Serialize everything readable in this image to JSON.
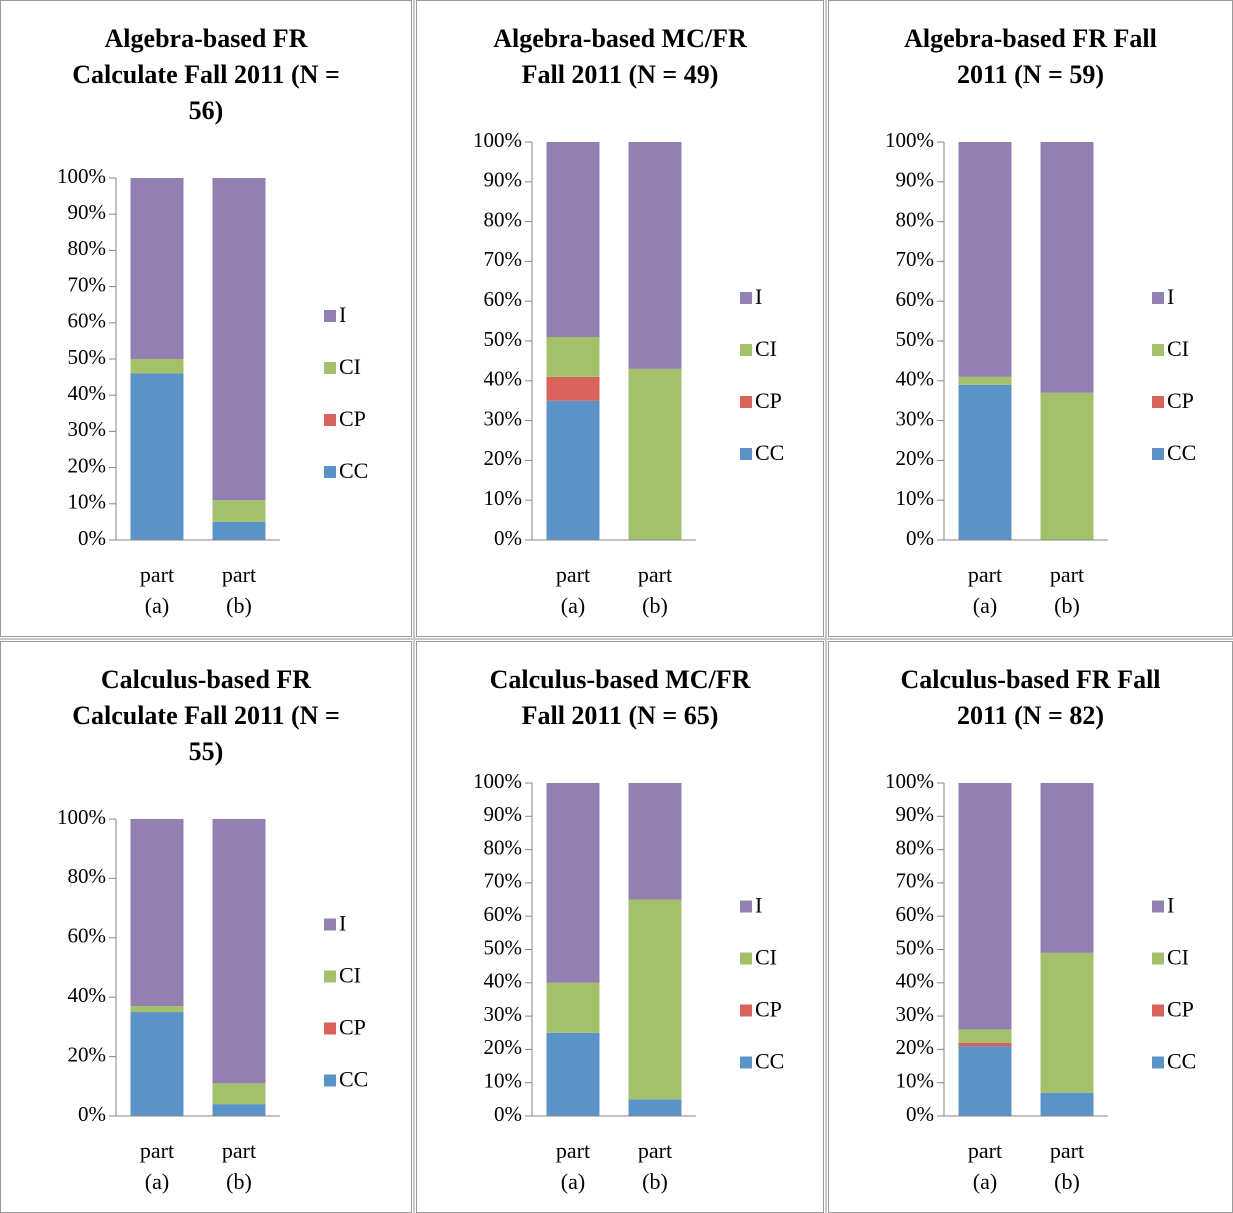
{
  "chart_data": [
    {
      "type": "bar",
      "stacked": true,
      "title": "Algebra-based FR Calculate Fall 2011 (N = 56)",
      "categories": [
        "part (a)",
        "part (b)"
      ],
      "series": [
        {
          "name": "CC",
          "color": "#5b93c9",
          "values": [
            46,
            5
          ]
        },
        {
          "name": "CP",
          "color": "#d9625a",
          "values": [
            0,
            0
          ]
        },
        {
          "name": "CI",
          "color": "#a3c16a",
          "values": [
            4,
            6
          ]
        },
        {
          "name": "I",
          "color": "#9380b3",
          "values": [
            50,
            89
          ]
        }
      ],
      "ylim": [
        0,
        100
      ],
      "yticks": [
        {
          "value": 0,
          "label": "0%"
        },
        {
          "value": 10,
          "label": "10%"
        },
        {
          "value": 20,
          "label": "20%"
        },
        {
          "value": 30,
          "label": "30%"
        },
        {
          "value": 40,
          "label": "40%"
        },
        {
          "value": 50,
          "label": "50%"
        },
        {
          "value": 60,
          "label": "60%"
        },
        {
          "value": 70,
          "label": "70%"
        },
        {
          "value": 80,
          "label": "80%"
        },
        {
          "value": 90,
          "label": "90%"
        },
        {
          "value": 100,
          "label": "100%"
        }
      ],
      "legend": "right"
    },
    {
      "type": "bar",
      "stacked": true,
      "title": "Algebra-based MC/FR Fall 2011 (N = 49)",
      "categories": [
        "part (a)",
        "part (b)"
      ],
      "series": [
        {
          "name": "CC",
          "color": "#5b93c9",
          "values": [
            35,
            0
          ]
        },
        {
          "name": "CP",
          "color": "#d9625a",
          "values": [
            6,
            0
          ]
        },
        {
          "name": "CI",
          "color": "#a3c16a",
          "values": [
            10,
            43
          ]
        },
        {
          "name": "I",
          "color": "#9380b3",
          "values": [
            49,
            57
          ]
        }
      ],
      "ylim": [
        0,
        100
      ],
      "yticks": [
        {
          "value": 0,
          "label": "0%"
        },
        {
          "value": 10,
          "label": "10%"
        },
        {
          "value": 20,
          "label": "20%"
        },
        {
          "value": 30,
          "label": "30%"
        },
        {
          "value": 40,
          "label": "40%"
        },
        {
          "value": 50,
          "label": "50%"
        },
        {
          "value": 60,
          "label": "60%"
        },
        {
          "value": 70,
          "label": "70%"
        },
        {
          "value": 80,
          "label": "80%"
        },
        {
          "value": 90,
          "label": "90%"
        },
        {
          "value": 100,
          "label": "100%"
        }
      ],
      "legend": "right"
    },
    {
      "type": "bar",
      "stacked": true,
      "title": "Algebra-based FR Fall 2011 (N = 59)",
      "categories": [
        "part (a)",
        "part (b)"
      ],
      "series": [
        {
          "name": "CC",
          "color": "#5b93c9",
          "values": [
            39,
            0
          ]
        },
        {
          "name": "CP",
          "color": "#d9625a",
          "values": [
            0,
            0
          ]
        },
        {
          "name": "CI",
          "color": "#a3c16a",
          "values": [
            2,
            37
          ]
        },
        {
          "name": "I",
          "color": "#9380b3",
          "values": [
            59,
            63
          ]
        }
      ],
      "ylim": [
        0,
        100
      ],
      "yticks": [
        {
          "value": 0,
          "label": "0%"
        },
        {
          "value": 10,
          "label": "10%"
        },
        {
          "value": 20,
          "label": "20%"
        },
        {
          "value": 30,
          "label": "30%"
        },
        {
          "value": 40,
          "label": "40%"
        },
        {
          "value": 50,
          "label": "50%"
        },
        {
          "value": 60,
          "label": "60%"
        },
        {
          "value": 70,
          "label": "70%"
        },
        {
          "value": 80,
          "label": "80%"
        },
        {
          "value": 90,
          "label": "90%"
        },
        {
          "value": 100,
          "label": "100%"
        }
      ],
      "legend": "right"
    },
    {
      "type": "bar",
      "stacked": true,
      "title": "Calculus-based FR Calculate Fall 2011 (N = 55)",
      "categories": [
        "part (a)",
        "part (b)"
      ],
      "series": [
        {
          "name": "CC",
          "color": "#5b93c9",
          "values": [
            35,
            4
          ]
        },
        {
          "name": "CP",
          "color": "#d9625a",
          "values": [
            0,
            0
          ]
        },
        {
          "name": "CI",
          "color": "#a3c16a",
          "values": [
            2,
            7
          ]
        },
        {
          "name": "I",
          "color": "#9380b3",
          "values": [
            63,
            89
          ]
        }
      ],
      "ylim": [
        0,
        100
      ],
      "yticks": [
        {
          "value": 0,
          "label": "0%"
        },
        {
          "value": 20,
          "label": "20%"
        },
        {
          "value": 40,
          "label": "40%"
        },
        {
          "value": 60,
          "label": "60%"
        },
        {
          "value": 80,
          "label": "80%"
        },
        {
          "value": 100,
          "label": "100%"
        }
      ],
      "legend": "right"
    },
    {
      "type": "bar",
      "stacked": true,
      "title": "Calculus-based MC/FR Fall 2011 (N = 65)",
      "categories": [
        "part (a)",
        "part (b)"
      ],
      "series": [
        {
          "name": "CC",
          "color": "#5b93c9",
          "values": [
            25,
            5
          ]
        },
        {
          "name": "CP",
          "color": "#d9625a",
          "values": [
            0,
            0
          ]
        },
        {
          "name": "CI",
          "color": "#a3c16a",
          "values": [
            15,
            60
          ]
        },
        {
          "name": "I",
          "color": "#9380b3",
          "values": [
            60,
            35
          ]
        }
      ],
      "ylim": [
        0,
        100
      ],
      "yticks": [
        {
          "value": 0,
          "label": "0%"
        },
        {
          "value": 10,
          "label": "10%"
        },
        {
          "value": 20,
          "label": "20%"
        },
        {
          "value": 30,
          "label": "30%"
        },
        {
          "value": 40,
          "label": "40%"
        },
        {
          "value": 50,
          "label": "50%"
        },
        {
          "value": 60,
          "label": "60%"
        },
        {
          "value": 70,
          "label": "70%"
        },
        {
          "value": 80,
          "label": "80%"
        },
        {
          "value": 90,
          "label": "90%"
        },
        {
          "value": 100,
          "label": "100%"
        }
      ],
      "legend": "right"
    },
    {
      "type": "bar",
      "stacked": true,
      "title": "Calculus-based FR Fall 2011 (N = 82)",
      "categories": [
        "part (a)",
        "part (b)"
      ],
      "series": [
        {
          "name": "CC",
          "color": "#5b93c9",
          "values": [
            21,
            7
          ]
        },
        {
          "name": "CP",
          "color": "#d9625a",
          "values": [
            1,
            0
          ]
        },
        {
          "name": "CI",
          "color": "#a3c16a",
          "values": [
            4,
            42
          ]
        },
        {
          "name": "I",
          "color": "#9380b3",
          "values": [
            74,
            51
          ]
        }
      ],
      "ylim": [
        0,
        100
      ],
      "yticks": [
        {
          "value": 0,
          "label": "0%"
        },
        {
          "value": 10,
          "label": "10%"
        },
        {
          "value": 20,
          "label": "20%"
        },
        {
          "value": 30,
          "label": "30%"
        },
        {
          "value": 40,
          "label": "40%"
        },
        {
          "value": 50,
          "label": "50%"
        },
        {
          "value": 60,
          "label": "60%"
        },
        {
          "value": 70,
          "label": "70%"
        },
        {
          "value": 80,
          "label": "80%"
        },
        {
          "value": 90,
          "label": "90%"
        },
        {
          "value": 100,
          "label": "100%"
        }
      ],
      "legend": "right"
    }
  ]
}
